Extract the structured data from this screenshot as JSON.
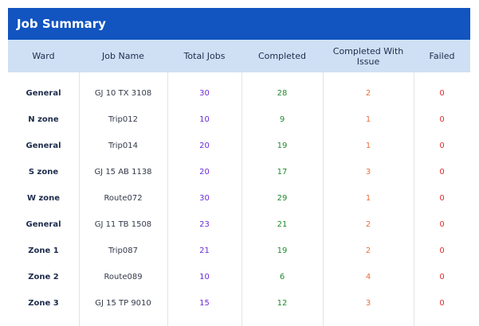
{
  "title": "Job Summary",
  "columns": [
    "Ward",
    "Job Name",
    "Total Jobs",
    "Completed",
    "Completed With Issue",
    "Failed"
  ],
  "rows": [
    [
      "General",
      "GJ 10 TX 3108",
      "30",
      "28",
      "2",
      "0"
    ],
    [
      "N zone",
      "Trip012",
      "10",
      "9",
      "1",
      "0"
    ],
    [
      "General",
      "Trip014",
      "20",
      "19",
      "1",
      "0"
    ],
    [
      "S zone",
      "GJ 15 AB 1138",
      "20",
      "17",
      "3",
      "0"
    ],
    [
      "W zone",
      "Route072",
      "30",
      "29",
      "1",
      "0"
    ],
    [
      "General",
      "GJ 11 TB 1508",
      "23",
      "21",
      "2",
      "0"
    ],
    [
      "Zone 1",
      "Trip087",
      "21",
      "19",
      "2",
      "0"
    ],
    [
      "Zone 2",
      "Route089",
      "10",
      "6",
      "4",
      "0"
    ],
    [
      "Zone 3",
      "GJ 15 TP 9010",
      "15",
      "12",
      "3",
      "0"
    ]
  ],
  "colors": {
    "header_bar": "#1254c0",
    "column_header_bg": "#cfe0f4",
    "total_jobs": "#6a2bd6",
    "completed": "#1f8a2e",
    "completed_with_issue": "#e8703a",
    "failed": "#e62a2a"
  }
}
